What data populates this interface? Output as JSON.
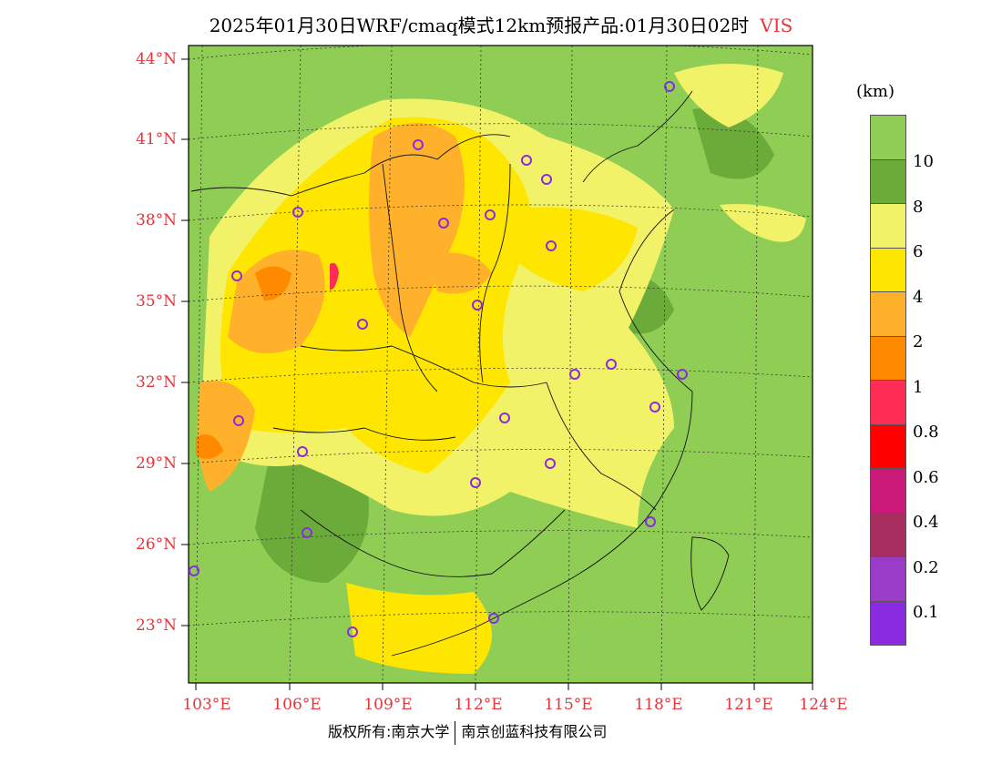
{
  "title": {
    "main": "2025年01月30日WRF/cmaq模式12km预报产品:01月30日02时",
    "variable": "VIS"
  },
  "lat_labels": [
    "44°N",
    "41°N",
    "38°N",
    "35°N",
    "32°N",
    "29°N",
    "26°N",
    "23°N"
  ],
  "lon_labels": [
    "103°E",
    "106°E",
    "109°E",
    "112°E",
    "115°E",
    "118°E",
    "121°E",
    "124°E"
  ],
  "legend": {
    "unit": "(km)",
    "labels": [
      "10",
      "8",
      "6",
      "4",
      "2",
      "1",
      "0.8",
      "0.6",
      "0.4",
      "0.2",
      "0.1"
    ],
    "colors": [
      "#8fcd55",
      "#6aab3a",
      "#f2f269",
      "#ffe600",
      "#ffb12b",
      "#ff8a00",
      "#ff2d55",
      "#ff0000",
      "#cc1a7a",
      "#a82e5f",
      "#9a3cc8",
      "#8a2be2"
    ]
  },
  "colors": {
    "land_background": "#8fcd55",
    "label_red": "#e8343b",
    "station_marker": "#8a2be2"
  },
  "footer": {
    "left": "版权所有:南京大学",
    "right": "南京创蓝科技有限公司"
  }
}
